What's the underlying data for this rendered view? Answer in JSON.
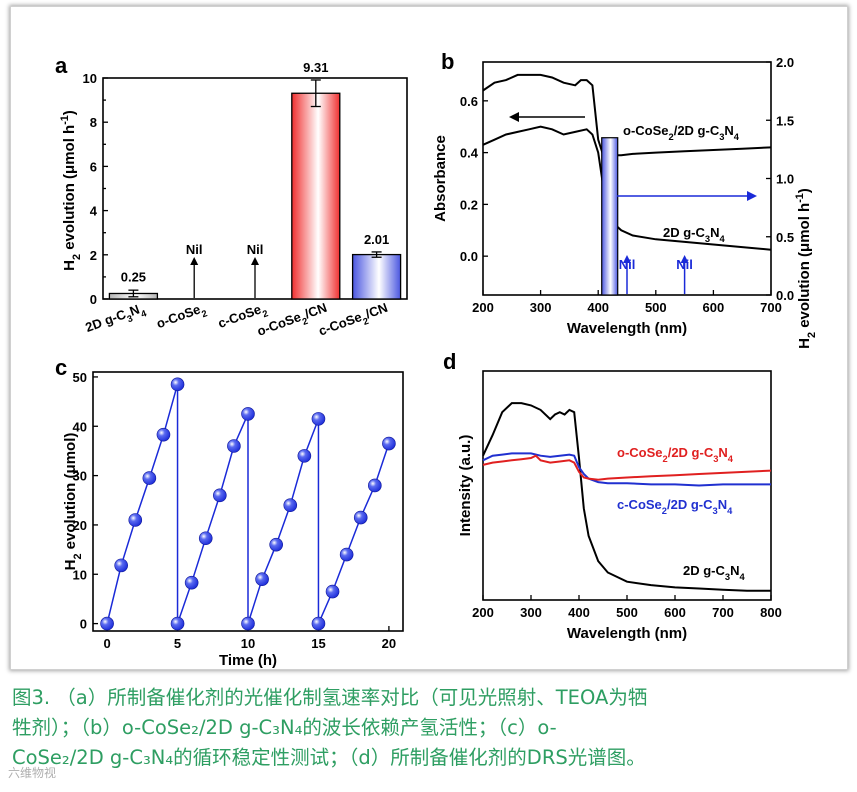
{
  "chart_data": [
    {
      "panel": "a",
      "type": "bar",
      "ylabel_parts": [
        "H",
        "2",
        " evolution (μmol h",
        "-1",
        ")"
      ],
      "ylim": [
        0,
        10
      ],
      "yticks": [
        0,
        2,
        4,
        6,
        8,
        10
      ],
      "categories": [
        {
          "parts": [
            "2D g-C",
            "3",
            "N",
            "4"
          ]
        },
        {
          "parts": [
            "o-CoSe",
            "2"
          ]
        },
        {
          "parts": [
            "c-CoSe",
            "2"
          ]
        },
        {
          "parts": [
            "o-CoSe",
            "2",
            "/CN"
          ]
        },
        {
          "parts": [
            "c-CoSe",
            "2",
            "/CN"
          ]
        }
      ],
      "values": [
        0.25,
        0,
        0,
        9.31,
        2.01
      ],
      "errors": [
        0.15,
        0,
        0,
        0.6,
        0.12
      ],
      "value_labels": [
        "0.25",
        "Nil",
        "Nil",
        "9.31",
        "2.01"
      ],
      "bar_colors": [
        "#b5b5b5",
        null,
        null,
        "#f03030",
        "#4a56e0"
      ]
    },
    {
      "panel": "b",
      "type": "line",
      "xlabel": "Wavelength (nm)",
      "ylabel_left": "Absorbance",
      "ylabel_right_parts": [
        "H",
        "2",
        " evolution (μmol h",
        "-1",
        ")"
      ],
      "xlim": [
        200,
        700
      ],
      "xticks": [
        200,
        300,
        400,
        500,
        600,
        700
      ],
      "ylim_left": [
        -0.15,
        0.75
      ],
      "yticks_left": [
        0.0,
        0.2,
        0.4,
        0.6
      ],
      "ylim_right": [
        0,
        2.0
      ],
      "yticks_right": [
        0.0,
        0.5,
        1.0,
        1.5,
        2.0
      ],
      "series": [
        {
          "name": "o-CoSe2/2D g-C3N4",
          "x": [
            200,
            220,
            240,
            260,
            280,
            300,
            320,
            340,
            360,
            370,
            380,
            390,
            400,
            410,
            420,
            440,
            460,
            500,
            550,
            600,
            650,
            700
          ],
          "y": [
            0.64,
            0.67,
            0.68,
            0.7,
            0.7,
            0.7,
            0.69,
            0.67,
            0.66,
            0.68,
            0.68,
            0.66,
            0.45,
            0.38,
            0.39,
            0.39,
            0.395,
            0.4,
            0.405,
            0.41,
            0.415,
            0.42
          ]
        },
        {
          "name": "2D g-C3N4",
          "x": [
            200,
            220,
            240,
            260,
            280,
            300,
            320,
            340,
            360,
            380,
            390,
            400,
            410,
            420,
            440,
            460,
            500,
            550,
            600,
            650,
            700
          ],
          "y": [
            0.43,
            0.45,
            0.47,
            0.48,
            0.49,
            0.5,
            0.49,
            0.47,
            0.48,
            0.49,
            0.47,
            0.4,
            0.25,
            0.14,
            0.1,
            0.08,
            0.065,
            0.055,
            0.045,
            0.035,
            0.025
          ]
        }
      ],
      "hydrogen_bars": [
        {
          "wavelength": 420,
          "value": 1.35,
          "label": ""
        },
        {
          "wavelength": 450,
          "value": 0,
          "label": "Nil"
        },
        {
          "wavelength": 550,
          "value": 0,
          "label": "Nil"
        }
      ],
      "series_labels": [
        {
          "parts": [
            "o-CoSe",
            "2",
            "/2D g-C",
            "3",
            "N",
            "4"
          ]
        },
        {
          "parts": [
            "2D g-C",
            "3",
            "N",
            "4"
          ]
        }
      ]
    },
    {
      "panel": "c",
      "type": "scatter",
      "xlabel": "Time (h)",
      "ylabel_parts": [
        "H",
        "2",
        " evolution (μmol)"
      ],
      "xlim": [
        -1,
        21
      ],
      "xticks": [
        0,
        5,
        10,
        15,
        20
      ],
      "ylim": [
        -1.5,
        51
      ],
      "yticks": [
        0,
        10,
        20,
        30,
        40,
        50
      ],
      "cycles": [
        {
          "x": [
            0,
            1,
            2,
            3,
            4,
            5
          ],
          "y": [
            0,
            11.8,
            21,
            29.5,
            38.3,
            48.5
          ]
        },
        {
          "x": [
            5,
            6,
            7,
            8,
            9,
            10
          ],
          "y": [
            0,
            8.3,
            17.3,
            26,
            36,
            42.5
          ]
        },
        {
          "x": [
            10,
            11,
            12,
            13,
            14,
            15
          ],
          "y": [
            0,
            9,
            16,
            24,
            34,
            41.5
          ]
        },
        {
          "x": [
            15,
            16,
            17,
            18,
            19,
            20
          ],
          "y": [
            0,
            6.5,
            14,
            21.5,
            28,
            36.5
          ]
        }
      ],
      "color": "#1a2ad8"
    },
    {
      "panel": "d",
      "type": "line",
      "xlabel": "Wavelength (nm)",
      "ylabel": "Intensity (a.u.)",
      "xlim": [
        200,
        800
      ],
      "xticks": [
        200,
        300,
        400,
        500,
        600,
        700,
        800
      ],
      "ylim": [
        0,
        1
      ],
      "series": [
        {
          "name": "2D g-C3N4",
          "color": "#000000",
          "x": [
            200,
            220,
            240,
            260,
            280,
            300,
            320,
            340,
            350,
            360,
            370,
            380,
            390,
            400,
            410,
            420,
            440,
            460,
            500,
            550,
            600,
            650,
            700,
            750,
            800
          ],
          "y": [
            0.63,
            0.72,
            0.82,
            0.86,
            0.86,
            0.85,
            0.83,
            0.79,
            0.81,
            0.82,
            0.81,
            0.83,
            0.82,
            0.62,
            0.4,
            0.28,
            0.17,
            0.12,
            0.08,
            0.065,
            0.055,
            0.05,
            0.045,
            0.04,
            0.04
          ]
        },
        {
          "name": "c-CoSe2/2D g-C3N4",
          "color": "#2030d0",
          "x": [
            200,
            220,
            240,
            260,
            280,
            300,
            320,
            340,
            360,
            380,
            390,
            400,
            410,
            420,
            440,
            460,
            500,
            550,
            600,
            650,
            700,
            750,
            800
          ],
          "y": [
            0.61,
            0.63,
            0.635,
            0.64,
            0.64,
            0.64,
            0.63,
            0.625,
            0.63,
            0.635,
            0.63,
            0.58,
            0.55,
            0.53,
            0.515,
            0.51,
            0.51,
            0.505,
            0.505,
            0.5,
            0.505,
            0.505,
            0.505
          ]
        },
        {
          "name": "o-CoSe2/2D g-C3N4",
          "color": "#e02020",
          "x": [
            200,
            220,
            240,
            260,
            280,
            300,
            310,
            320,
            340,
            360,
            380,
            390,
            400,
            410,
            420,
            440,
            460,
            500,
            550,
            600,
            650,
            700,
            750,
            800
          ],
          "y": [
            0.59,
            0.6,
            0.605,
            0.61,
            0.615,
            0.62,
            0.63,
            0.61,
            0.6,
            0.605,
            0.61,
            0.6,
            0.56,
            0.535,
            0.53,
            0.525,
            0.53,
            0.535,
            0.54,
            0.545,
            0.55,
            0.555,
            0.56,
            0.565
          ]
        }
      ],
      "series_labels": [
        {
          "parts": [
            "o-CoSe",
            "2",
            "/2D g-C",
            "3",
            "N",
            "4"
          ],
          "color": "#e02020"
        },
        {
          "parts": [
            "c-CoSe",
            "2",
            "/2D g-C",
            "3",
            "N",
            "4"
          ],
          "color": "#2030d0"
        },
        {
          "parts": [
            "2D g-C",
            "3",
            "N",
            "4"
          ],
          "color": "#000000"
        }
      ]
    }
  ],
  "caption": {
    "line1": "图3. （a）所制备催化剂的光催化制氢速率对比（可见光照射、TEOA为牺",
    "line2": "牲剂）；（b）o-CoSe₂/2D g-C₃N₄的波长依赖产氢活性；（c）o-",
    "line3": "CoSe₂/2D g-C₃N₄的循环稳定性测试；（d）所制备催化剂的DRS光谱图。"
  },
  "watermark": "六维物视"
}
